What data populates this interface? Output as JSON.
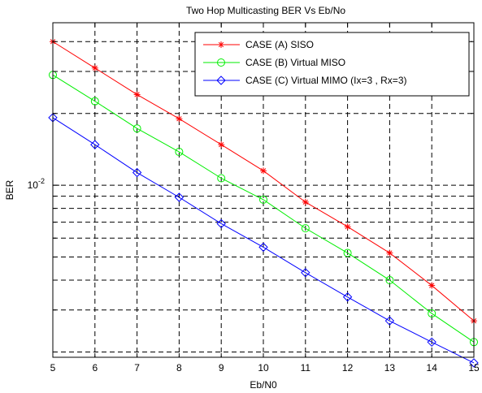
{
  "chart_data": {
    "type": "line",
    "title": "Two Hop Multicasting BER Vs Eb/No",
    "xlabel": "Eb/N0",
    "ylabel": "BER",
    "x": [
      5,
      6,
      7,
      8,
      9,
      10,
      11,
      12,
      13,
      14,
      15
    ],
    "xlim": [
      5,
      15
    ],
    "ylim": [
      0.0019,
      0.048
    ],
    "yscale": "log",
    "x_tick_labels": [
      "5",
      "6",
      "7",
      "8",
      "9",
      "10",
      "11",
      "12",
      "13",
      "14",
      "15"
    ],
    "y_tick_labels": [
      {
        "value": 0.01,
        "label": "10",
        "exponent": "-2"
      }
    ],
    "grid": true,
    "legend_position": "top-right",
    "series": [
      {
        "name": "CASE (A) SISO",
        "color": "#ff0000",
        "marker": "asterisk",
        "values": [
          0.04,
          0.031,
          0.024,
          0.019,
          0.0148,
          0.0115,
          0.0085,
          0.0067,
          0.0052,
          0.0038,
          0.0027
        ]
      },
      {
        "name": "CASE (B) Virtual MISO",
        "color": "#00ee00",
        "marker": "circle",
        "values": [
          0.029,
          0.0225,
          0.0173,
          0.0138,
          0.0107,
          0.0087,
          0.0066,
          0.0052,
          0.004,
          0.0029,
          0.0022
        ]
      },
      {
        "name": "CASE (C) Virtual MIMO (Ix=3 , Rx=3)",
        "color": "#0000ff",
        "marker": "diamond",
        "values": [
          0.0192,
          0.0148,
          0.0113,
          0.0089,
          0.0069,
          0.0055,
          0.0043,
          0.0034,
          0.0027,
          0.0022,
          0.0018
        ]
      }
    ]
  }
}
